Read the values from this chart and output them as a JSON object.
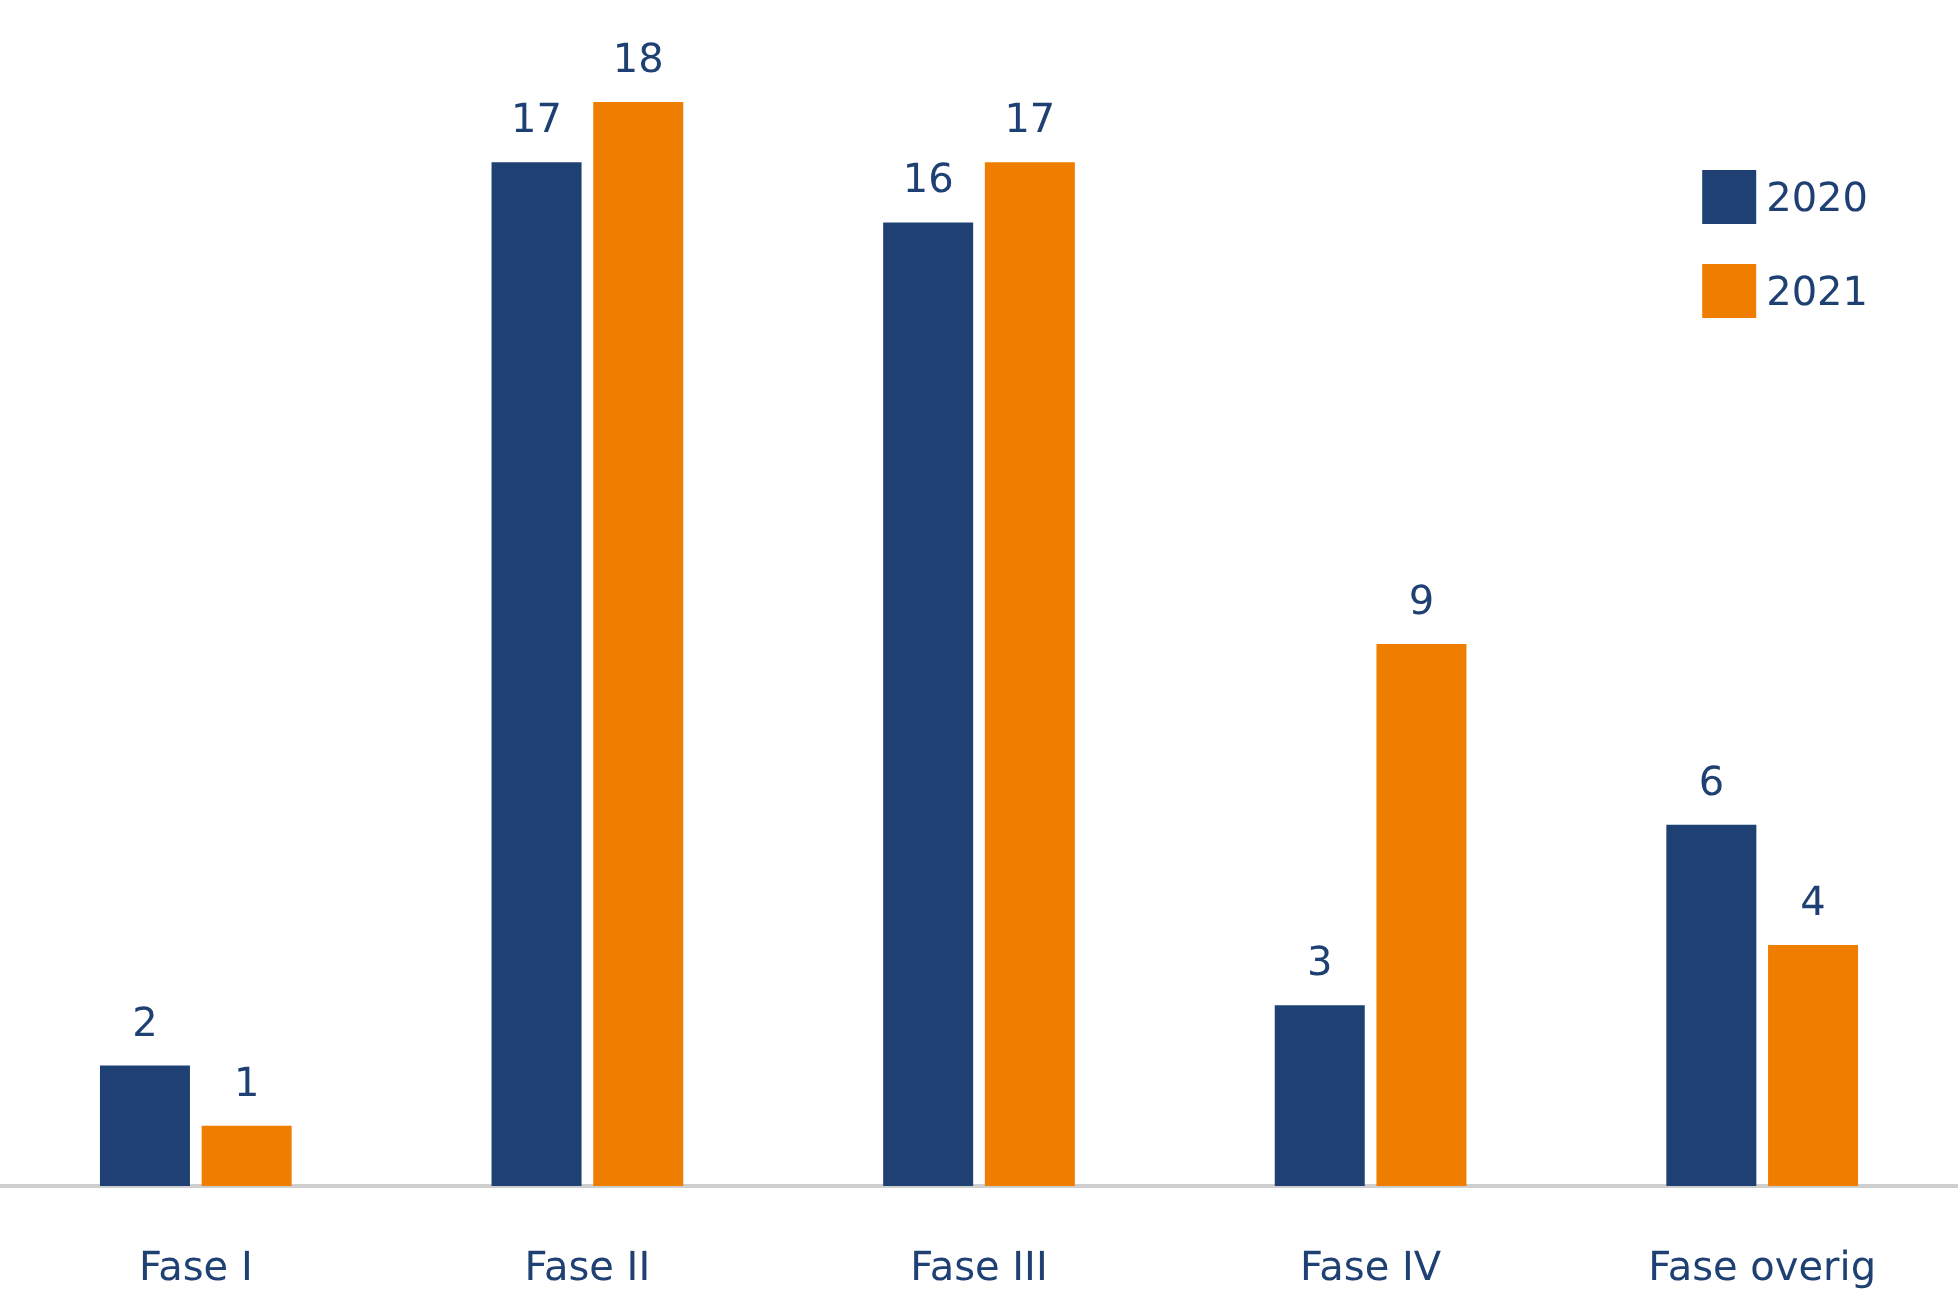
{
  "chart_data": {
    "type": "bar",
    "categories": [
      "Fase I",
      "Fase II",
      "Fase III",
      "Fase IV",
      "Fase overig"
    ],
    "series": [
      {
        "name": "2020",
        "color": "#1e4073",
        "values": [
          2,
          17,
          16,
          3,
          6
        ]
      },
      {
        "name": "2021",
        "color": "#ef7d00",
        "values": [
          1,
          18,
          17,
          9,
          4
        ]
      }
    ],
    "data_labels": true,
    "legend": "top right"
  }
}
